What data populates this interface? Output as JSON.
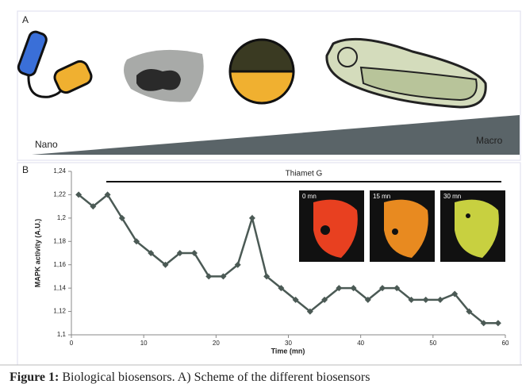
{
  "panel_a": {
    "label": "A",
    "scale_start": "Nano",
    "scale_end": "Macro"
  },
  "chart_data": {
    "type": "line",
    "panel_label": "B",
    "annotation": "Thiamet G",
    "x_label": "Time (mn)",
    "y_label": "MAPK activity (A.U.)",
    "x": [
      1,
      3,
      5,
      7,
      9,
      11,
      13,
      15,
      17,
      19,
      21,
      23,
      25,
      27,
      29,
      31,
      33,
      35,
      37,
      39,
      41,
      43,
      45,
      47,
      49,
      51,
      53,
      55,
      57,
      59
    ],
    "series": [
      {
        "color": "#4b5a55",
        "values": [
          1.22,
          1.21,
          1.22,
          1.2,
          1.18,
          1.17,
          1.16,
          1.17,
          1.17,
          1.15,
          1.15,
          1.16,
          1.2,
          1.15,
          1.14,
          1.13,
          1.12,
          1.13,
          1.14,
          1.14,
          1.13,
          1.14,
          1.14,
          1.13,
          1.13,
          1.13,
          1.135,
          1.12,
          1.11,
          1.11
        ]
      }
    ],
    "xlim": [
      0,
      60
    ],
    "xticks": [
      0,
      10,
      20,
      30,
      40,
      50,
      60
    ],
    "ylim": [
      1.1,
      1.24
    ],
    "yticks": [
      {
        "value": 1.1,
        "label": "1,1"
      },
      {
        "value": 1.12,
        "label": "1,12"
      },
      {
        "value": 1.14,
        "label": "1,14"
      },
      {
        "value": 1.16,
        "label": "1,16"
      },
      {
        "value": 1.18,
        "label": "1,18"
      },
      {
        "value": 1.2,
        "label": "1,2"
      },
      {
        "value": 1.22,
        "label": "1,22"
      },
      {
        "value": 1.24,
        "label": "1,24"
      }
    ],
    "insets": [
      "0 mn",
      "15 mn",
      "30 mn"
    ]
  },
  "caption": {
    "label": "Figure 1:",
    "text": "Biological biosensors. A) Scheme of the different biosensors"
  }
}
